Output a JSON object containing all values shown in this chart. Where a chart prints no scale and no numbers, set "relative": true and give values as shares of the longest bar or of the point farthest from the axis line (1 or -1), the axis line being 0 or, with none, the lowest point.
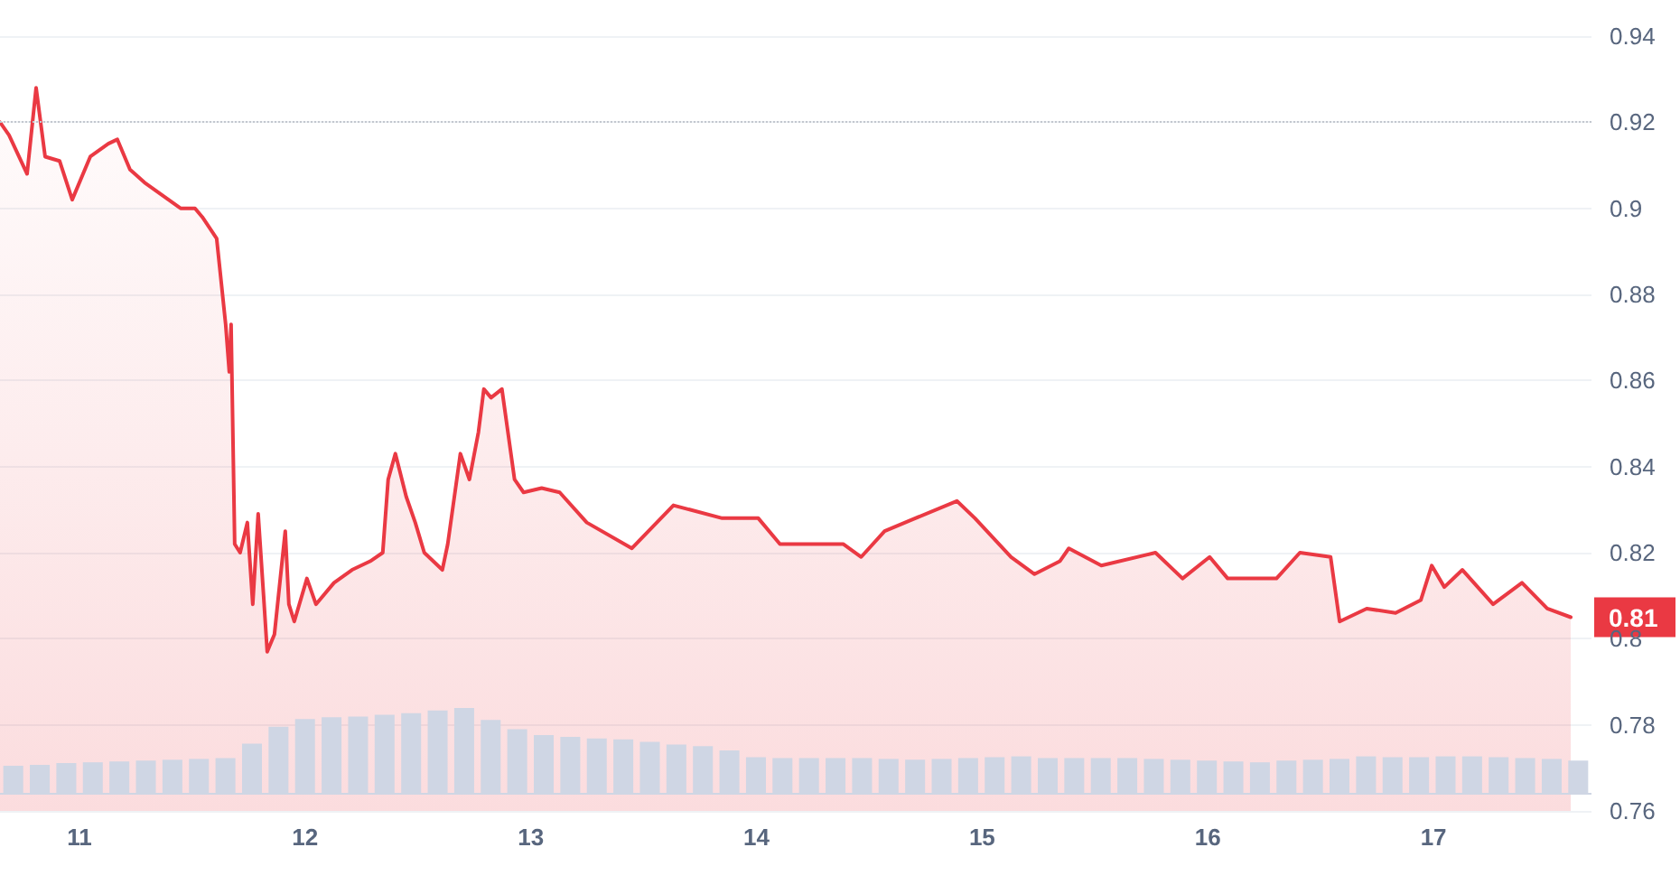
{
  "chart_data": [
    {
      "type": "area",
      "x": [
        10.648,
        10.688,
        10.768,
        10.808,
        10.848,
        10.912,
        10.968,
        11.048,
        11.128,
        11.168,
        11.224,
        11.288,
        11.368,
        11.448,
        11.512,
        11.544,
        11.608,
        11.648,
        11.664,
        11.672,
        11.688,
        11.712,
        11.744,
        11.768,
        11.792,
        11.816,
        11.832,
        11.864,
        11.912,
        11.928,
        11.952,
        12.008,
        12.048,
        12.128,
        12.208,
        12.288,
        12.344,
        12.368,
        12.4,
        12.448,
        12.488,
        12.528,
        12.608,
        12.632,
        12.688,
        12.728,
        12.768,
        12.792,
        12.824,
        12.872,
        12.928,
        12.968,
        13.048,
        13.128,
        13.248,
        13.448,
        13.632,
        13.848,
        14.008,
        14.104,
        14.384,
        14.464,
        14.568,
        14.704,
        14.888,
        14.968,
        15.128,
        15.232,
        15.344,
        15.384,
        15.528,
        15.768,
        15.888,
        16.008,
        16.088,
        16.304,
        16.408,
        16.544,
        16.584,
        16.704,
        16.832,
        16.944,
        16.992,
        17.048,
        17.128,
        17.264,
        17.392,
        17.504,
        17.608
      ],
      "series": [
        {
          "color": "#ea3943",
          "values": [
            0.92,
            0.917,
            0.908,
            0.928,
            0.912,
            0.911,
            0.902,
            0.912,
            0.915,
            0.916,
            0.909,
            0.906,
            0.903,
            0.9,
            0.9,
            0.898,
            0.893,
            0.873,
            0.862,
            0.873,
            0.822,
            0.82,
            0.827,
            0.808,
            0.829,
            0.81,
            0.797,
            0.801,
            0.825,
            0.808,
            0.804,
            0.814,
            0.808,
            0.813,
            0.816,
            0.818,
            0.82,
            0.837,
            0.843,
            0.833,
            0.827,
            0.82,
            0.816,
            0.822,
            0.843,
            0.837,
            0.848,
            0.858,
            0.856,
            0.858,
            0.837,
            0.834,
            0.835,
            0.834,
            0.827,
            0.821,
            0.831,
            0.828,
            0.828,
            0.822,
            0.822,
            0.819,
            0.825,
            0.828,
            0.832,
            0.828,
            0.819,
            0.815,
            0.818,
            0.821,
            0.817,
            0.82,
            0.814,
            0.819,
            0.814,
            0.814,
            0.82,
            0.819,
            0.804,
            0.807,
            0.806,
            0.809,
            0.817,
            0.812,
            0.816,
            0.808,
            0.813,
            0.807,
            0.805
          ]
        }
      ],
      "xlim": [
        10.648,
        17.7
      ],
      "xticks": [
        11,
        12,
        13,
        14,
        15,
        16,
        17
      ],
      "ylim": [
        0.76,
        0.94
      ],
      "yticks": [
        0.76,
        0.78,
        0.8,
        0.82,
        0.84,
        0.86,
        0.88,
        0.9,
        0.92,
        0.94
      ],
      "ref_lines": [
        {
          "axis": "y",
          "value": 0.92,
          "color": "#c3c7cf",
          "line_style": "dotted"
        }
      ],
      "annotations": [
        {
          "text": "0.81",
          "x": 17.608,
          "y": 0.805
        }
      ],
      "grid": "y",
      "marker": "none",
      "line_style": "solid"
    },
    {
      "type": "bar",
      "relative": true,
      "categories": [
        null,
        null,
        null,
        null,
        null,
        null,
        null,
        null,
        null,
        null,
        null,
        null,
        null,
        null,
        null,
        null,
        null,
        null,
        null,
        null,
        null,
        null,
        null,
        null,
        null,
        null,
        null,
        null,
        null,
        null,
        null,
        null,
        null,
        null,
        null,
        null,
        null,
        null,
        null,
        null,
        null,
        null,
        null,
        null,
        null,
        null,
        null,
        null,
        null,
        null,
        null,
        null,
        null,
        null,
        null,
        null,
        null,
        null,
        null,
        null
      ],
      "series": [
        {
          "color": "#cfd6e4",
          "values": [
            0.32,
            0.33,
            0.35,
            0.36,
            0.37,
            0.38,
            0.39,
            0.4,
            0.41,
            0.58,
            0.78,
            0.87,
            0.89,
            0.9,
            0.92,
            0.94,
            0.97,
            1,
            0.86,
            0.75,
            0.68,
            0.66,
            0.64,
            0.63,
            0.6,
            0.57,
            0.55,
            0.5,
            0.42,
            0.41,
            0.41,
            0.41,
            0.41,
            0.4,
            0.39,
            0.4,
            0.41,
            0.42,
            0.43,
            0.41,
            0.41,
            0.41,
            0.41,
            0.4,
            0.39,
            0.38,
            0.37,
            0.36,
            0.38,
            0.39,
            0.4,
            0.43,
            0.42,
            0.42,
            0.43,
            0.43,
            0.42,
            0.41,
            0.4,
            0.38
          ]
        }
      ],
      "grid": false
    }
  ]
}
